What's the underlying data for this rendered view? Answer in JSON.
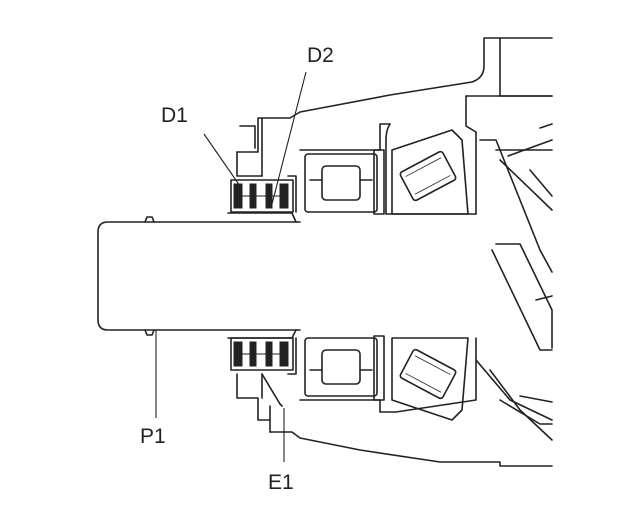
{
  "labels": {
    "d1": "D1",
    "d2": "D2",
    "p1": "P1",
    "e1": "E1"
  },
  "colors": {
    "ink": "#222222",
    "background": "#ffffff"
  }
}
